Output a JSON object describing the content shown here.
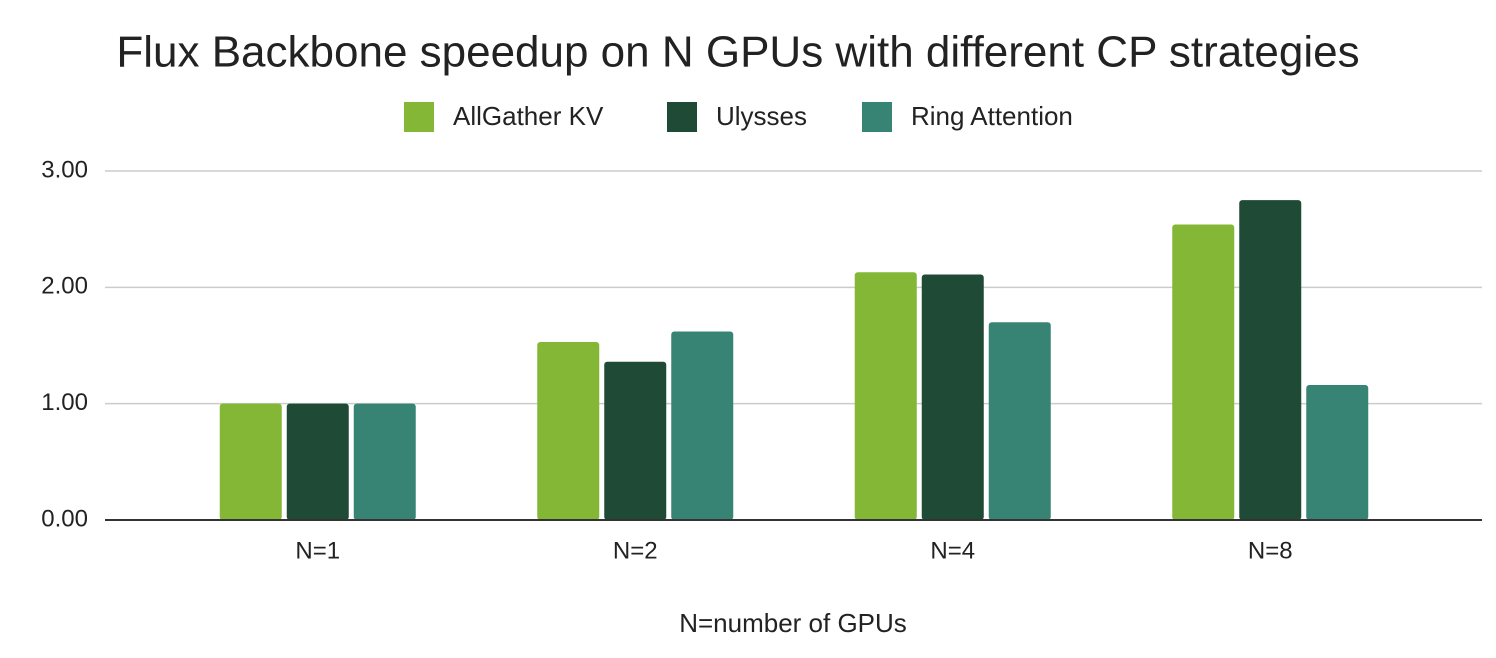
{
  "chart_data": {
    "type": "bar",
    "title": "Flux Backbone speedup on N GPUs with different CP strategies",
    "x_label": "N=number of GPUs",
    "categories": [
      "N=1",
      "N=2",
      "N=4",
      "N=8"
    ],
    "series": [
      {
        "name": "AllGather KV",
        "color": "#83b735",
        "values": [
          1.0,
          1.53,
          2.13,
          2.54
        ]
      },
      {
        "name": "Ulysses",
        "color": "#1e4a36",
        "values": [
          1.0,
          1.36,
          2.11,
          2.75
        ]
      },
      {
        "name": "Ring Attention",
        "color": "#388474",
        "values": [
          1.0,
          1.62,
          1.7,
          1.16
        ]
      }
    ],
    "ylim": [
      0,
      3
    ],
    "yticks": [
      {
        "value": 0,
        "label": "0.00"
      },
      {
        "value": 1,
        "label": "1.00"
      },
      {
        "value": 2,
        "label": "2.00"
      },
      {
        "value": 3,
        "label": "3.00"
      }
    ],
    "grid": true,
    "legend": "top"
  }
}
